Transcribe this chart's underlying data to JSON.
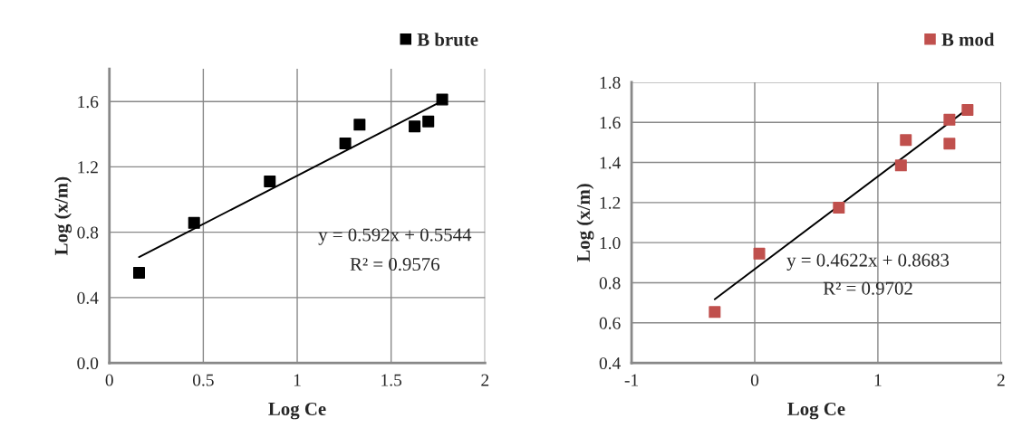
{
  "chart_data": [
    {
      "type": "scatter",
      "xlabel": "Log Ce",
      "ylabel": "Log (x/m)",
      "xlim": [
        0,
        2
      ],
      "xticks": [
        0,
        0.5,
        1,
        1.5,
        2
      ],
      "ylim": [
        0,
        1.8
      ],
      "yticks": [
        {
          "value": 0,
          "label": "0.0"
        },
        0.4,
        0.8,
        1.2,
        1.6
      ],
      "grid": true,
      "legend": "top right",
      "annotations": [
        "y = 0.592x + 0.5544",
        "R² = 0.9576"
      ],
      "series": [
        {
          "name": "B brute",
          "color": "#000000",
          "marker": "square",
          "x": [
            0.158,
            0.451,
            0.854,
            1.256,
            1.332,
            1.625,
            1.698,
            1.772
          ],
          "values": [
            0.552,
            0.857,
            1.111,
            1.344,
            1.458,
            1.448,
            1.478,
            1.612
          ]
        },
        {
          "type": "line",
          "color": "#000000",
          "marker": "none",
          "x": [
            0.158,
            1.772
          ],
          "values": [
            0.648,
            1.603
          ]
        }
      ]
    },
    {
      "type": "scatter",
      "xlabel": "Log Ce",
      "ylabel": "Log (x/m)",
      "xlim": [
        -1,
        2
      ],
      "xticks": [
        {
          "value": -1,
          "label": "-1"
        },
        0,
        1,
        2
      ],
      "ylim": [
        0.4,
        1.8
      ],
      "yticks": [
        0.4,
        0.6,
        0.8,
        {
          "value": 1.0,
          "label": "1.0"
        },
        1.2,
        1.4,
        1.6,
        1.8
      ],
      "grid": true,
      "legend": "top right",
      "annotations": [
        "y = 0.4622x + 0.8683",
        "R² = 0.9702"
      ],
      "series": [
        {
          "name": "B mod",
          "color": "#c0504d",
          "marker": "square",
          "x": [
            -0.325,
            0.037,
            0.683,
            1.187,
            1.227,
            1.581,
            1.581,
            1.728
          ],
          "values": [
            0.654,
            0.945,
            1.174,
            1.385,
            1.512,
            1.494,
            1.613,
            1.662
          ]
        },
        {
          "type": "line",
          "color": "#000000",
          "marker": "none",
          "x": [
            -0.325,
            1.728
          ],
          "values": [
            0.718,
            1.667
          ]
        }
      ]
    }
  ]
}
